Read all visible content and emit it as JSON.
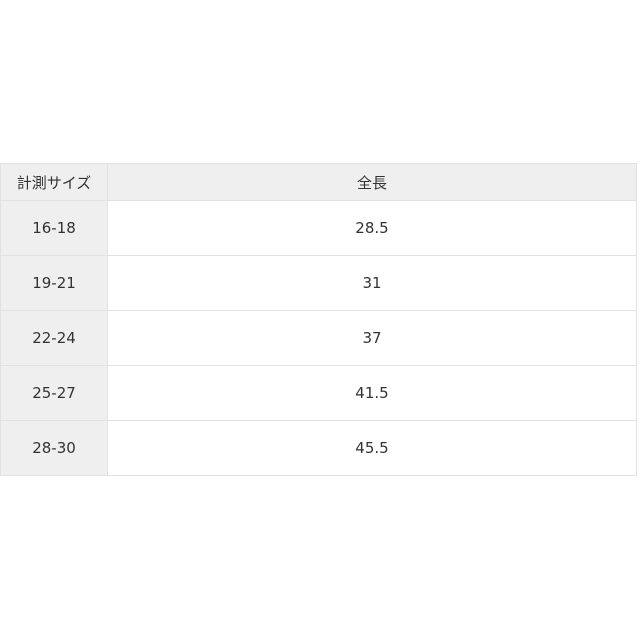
{
  "table": {
    "headers": [
      "計測サイズ",
      "全長"
    ],
    "rows": [
      {
        "size": "16-18",
        "length": "28.5"
      },
      {
        "size": "19-21",
        "length": "31"
      },
      {
        "size": "22-24",
        "length": "37"
      },
      {
        "size": "25-27",
        "length": "41.5"
      },
      {
        "size": "28-30",
        "length": "45.5"
      }
    ]
  },
  "colors": {
    "header_bg": "#efefef",
    "border": "#e2e2e2",
    "text": "#333333"
  }
}
